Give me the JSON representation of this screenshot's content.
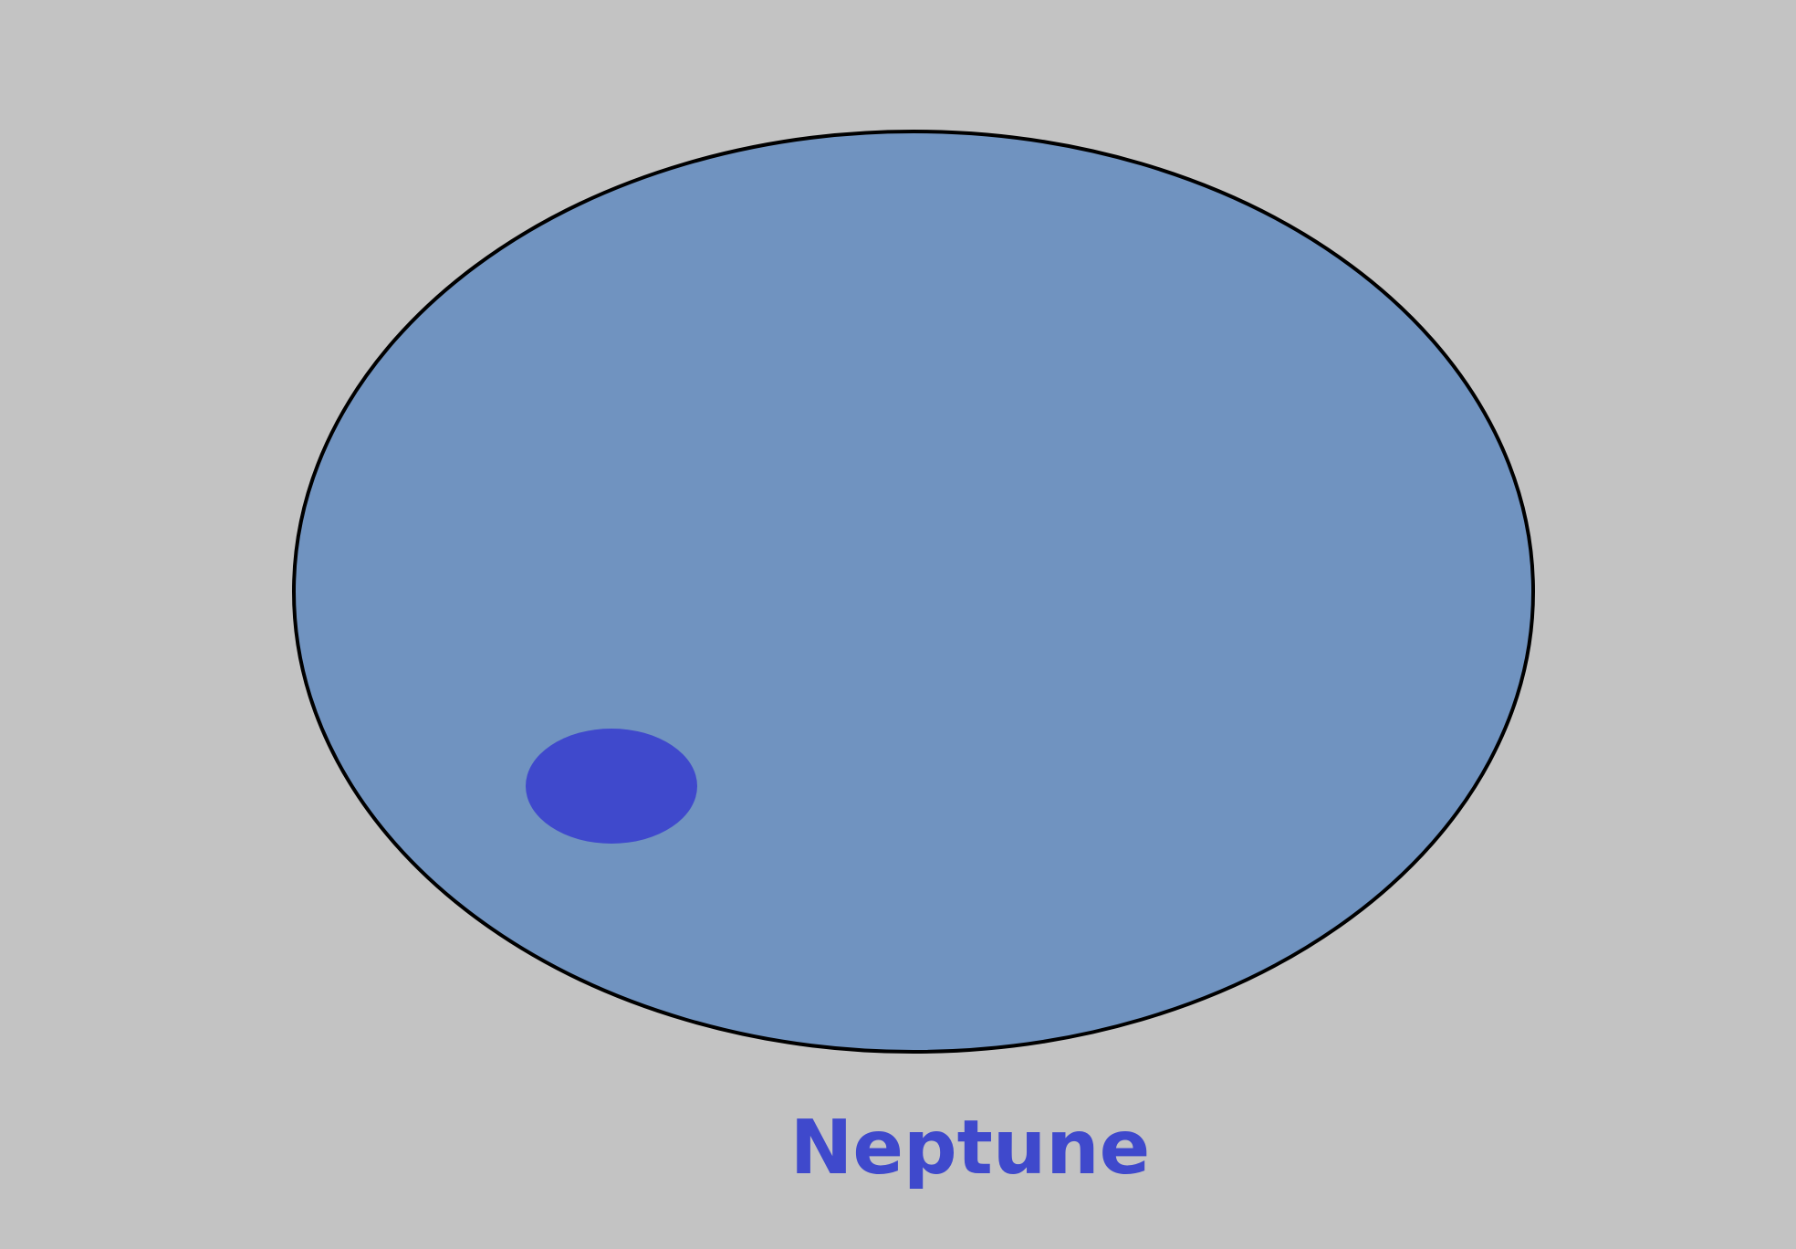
{
  "planet": {
    "name": "Neptune",
    "body_color": "#7093c0",
    "outline_color": "#000000",
    "spot_color": "#3f49cc",
    "label_color": "#3f49cc",
    "background_color": "#c3c3c3"
  }
}
